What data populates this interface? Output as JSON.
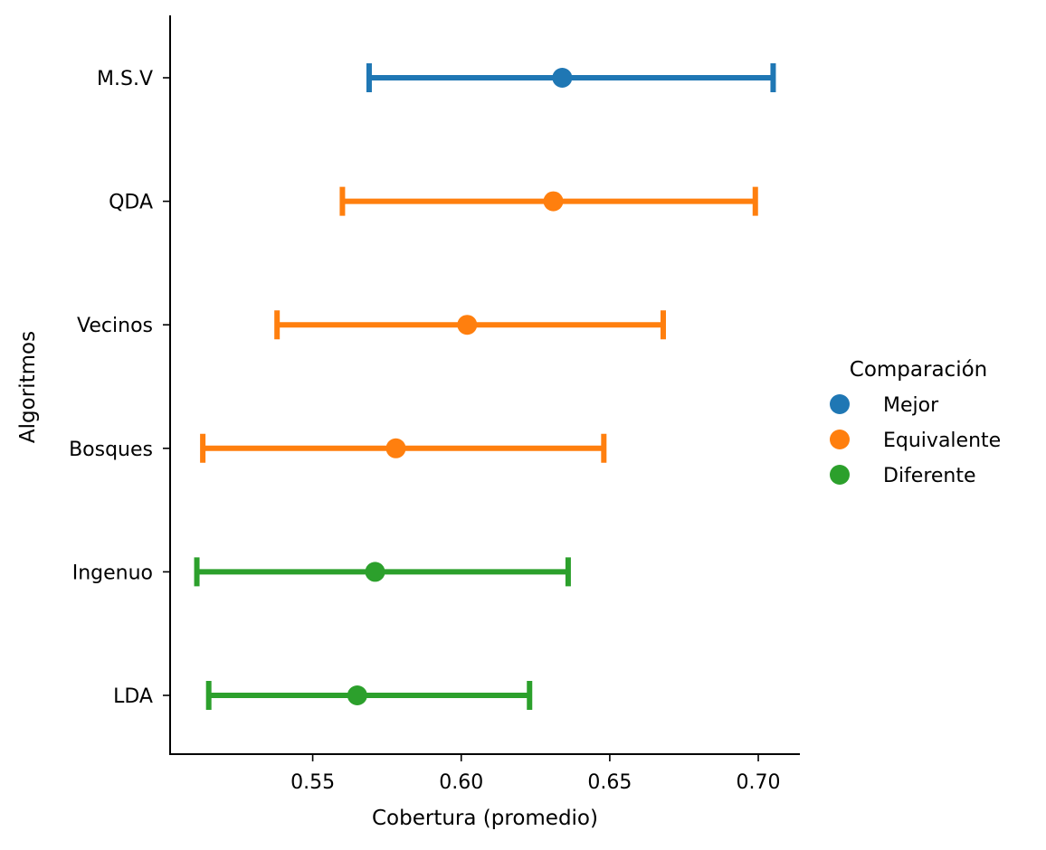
{
  "chart_data": {
    "type": "pointplot-errorbar",
    "orientation": "horizontal",
    "title": "",
    "xlabel": "Cobertura (promedio)",
    "ylabel": "Algoritmos",
    "xlim": [
      0.502,
      0.714
    ],
    "xticks": [
      0.55,
      0.6,
      0.65,
      0.7
    ],
    "xtick_labels": [
      "0.55",
      "0.60",
      "0.65",
      "0.70"
    ],
    "categories": [
      "M.S.V",
      "QDA",
      "Vecinos",
      "Bosques",
      "Ingenuo",
      "LDA"
    ],
    "points": [
      {
        "category": "M.S.V",
        "group": "Mejor",
        "mean": 0.634,
        "lower": 0.569,
        "upper": 0.705
      },
      {
        "category": "QDA",
        "group": "Equivalente",
        "mean": 0.631,
        "lower": 0.56,
        "upper": 0.699
      },
      {
        "category": "Vecinos",
        "group": "Equivalente",
        "mean": 0.602,
        "lower": 0.538,
        "upper": 0.668
      },
      {
        "category": "Bosques",
        "group": "Equivalente",
        "mean": 0.578,
        "lower": 0.513,
        "upper": 0.648
      },
      {
        "category": "Ingenuo",
        "group": "Diferente",
        "mean": 0.571,
        "lower": 0.511,
        "upper": 0.636
      },
      {
        "category": "LDA",
        "group": "Diferente",
        "mean": 0.565,
        "lower": 0.515,
        "upper": 0.623
      }
    ],
    "legend": {
      "title": "Comparación",
      "placement": "right",
      "entries": [
        {
          "label": "Mejor",
          "color": "#1f77b4"
        },
        {
          "label": "Equivalente",
          "color": "#ff7f0e"
        },
        {
          "label": "Diferente",
          "color": "#2ca02c"
        }
      ]
    },
    "grid": false
  }
}
